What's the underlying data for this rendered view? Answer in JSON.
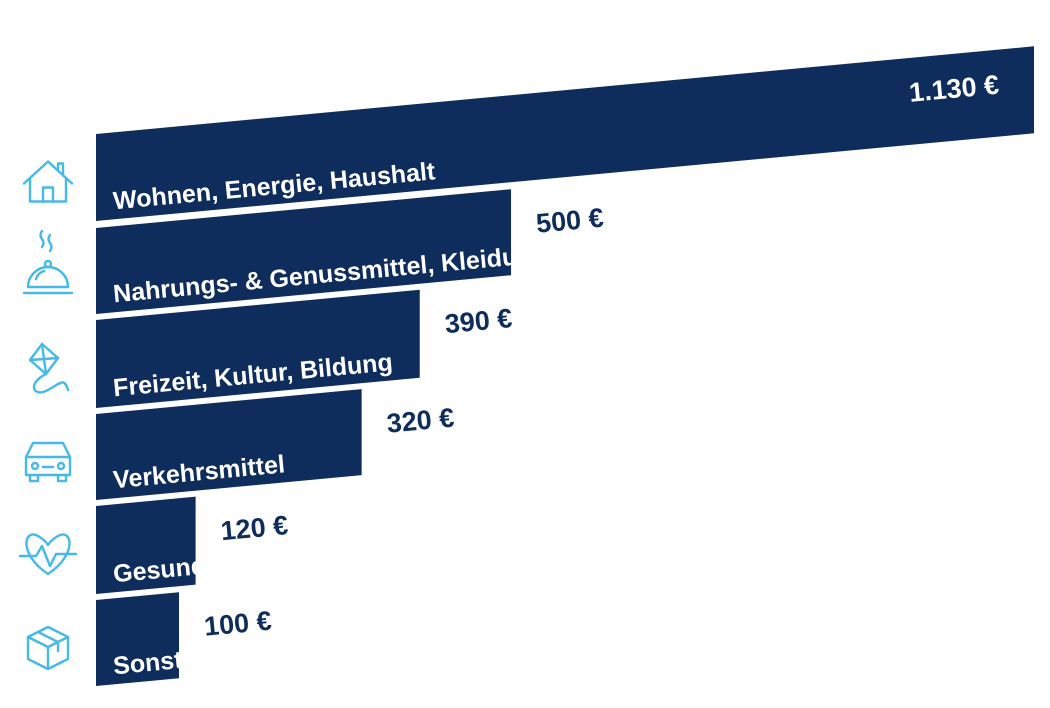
{
  "colors": {
    "bar": "#0e2d5c",
    "icon": "#45b9e8",
    "value_text": "#0e2d5c",
    "label_text": "#ffffff"
  },
  "chart_data": {
    "type": "bar",
    "orientation": "horizontal",
    "title": "",
    "xlabel": "",
    "ylabel": "",
    "unit": "€",
    "categories": [
      "Wohnen, Energie, Haushalt",
      "Nahrungs- & Genussmittel, Kleidung",
      "Freizeit, Kultur, Bildung",
      "Verkehrsmittel",
      "Gesundheit",
      "Sonstiges"
    ],
    "values": [
      1130,
      500,
      390,
      320,
      120,
      100
    ],
    "value_labels": [
      "1.130 €",
      "500 €",
      "390 €",
      "320 €",
      "120 €",
      "100 €"
    ],
    "icons": [
      "house-icon",
      "food-cloche-icon",
      "kite-icon",
      "car-icon",
      "heartbeat-icon",
      "package-icon"
    ],
    "grid": false,
    "legend": "none"
  }
}
